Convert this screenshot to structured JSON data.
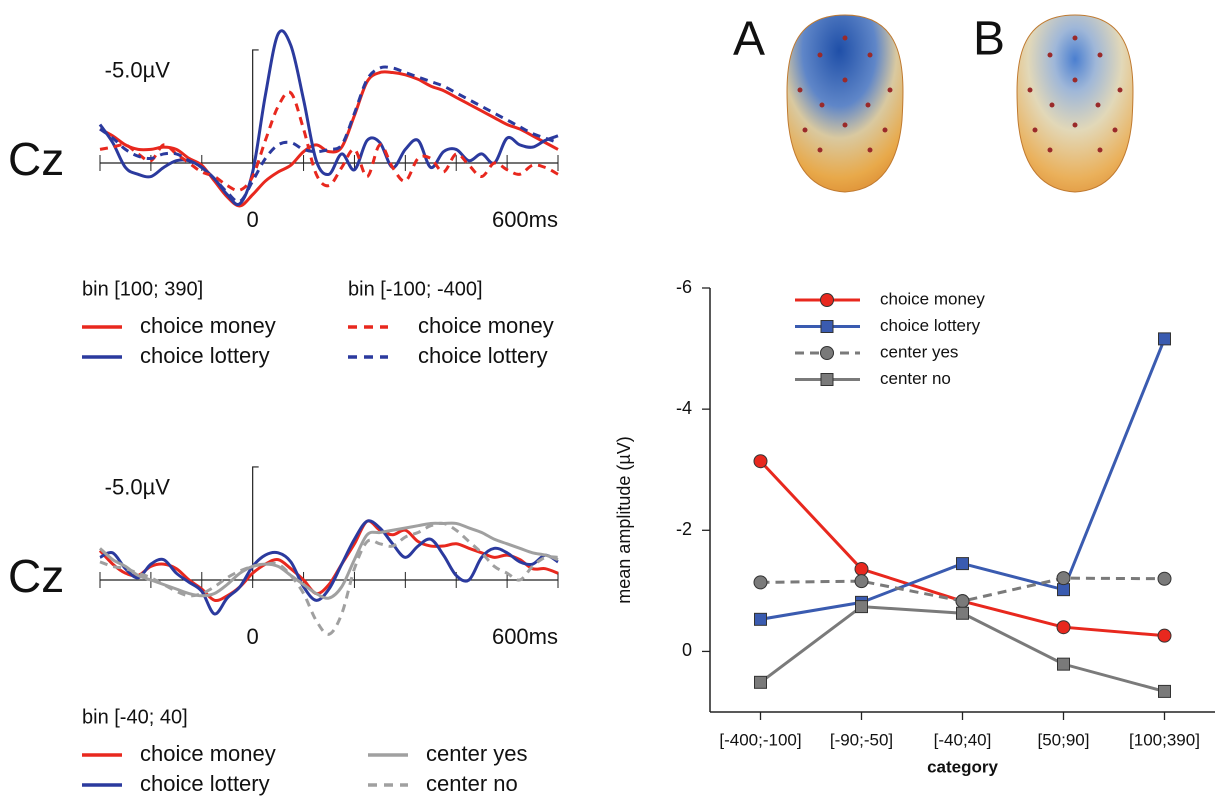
{
  "topomaps": {
    "labels": [
      "A",
      "B"
    ]
  },
  "chart_data": [
    {
      "type": "line",
      "label": "Cz",
      "x": [
        -300,
        -275,
        -250,
        -225,
        -200,
        -175,
        -150,
        -125,
        -100,
        -75,
        -50,
        -25,
        0,
        25,
        50,
        75,
        100,
        125,
        150,
        175,
        200,
        225,
        250,
        275,
        300,
        325,
        350,
        375,
        400,
        425,
        450,
        475,
        500,
        525,
        550,
        575,
        600
      ],
      "xlim": [
        -300,
        600
      ],
      "xticks": [
        0,
        {
          "value": 600,
          "label": "600ms"
        }
      ],
      "minor_xticks": [
        -300,
        -200,
        -100,
        100,
        200,
        300,
        400,
        500
      ],
      "ylim": [
        2.5,
        -6.5
      ],
      "yticks": [
        {
          "value": -5,
          "label": "-5.0µV"
        }
      ],
      "groups": [
        {
          "name": "bin [100; 390]",
          "series": [
            {
              "name": "choice money",
              "color": "#e8281e",
              "dashed": false,
              "values": [
                -1.5,
                -1.2,
                -0.8,
                -0.6,
                -0.6,
                -0.7,
                -0.6,
                -0.2,
                0.1,
                0.8,
                1.5,
                1.9,
                1.4,
                0.8,
                0.4,
                0.1,
                -0.5,
                -0.8,
                -0.5,
                -0.7,
                -2.1,
                -3.6,
                -4.0,
                -4.0,
                -3.9,
                -3.7,
                -3.4,
                -3.2,
                -2.9,
                -2.6,
                -2.3,
                -2.0,
                -1.7,
                -1.5,
                -1.2,
                -0.9,
                -0.6
              ]
            },
            {
              "name": "choice lottery",
              "color": "#2b3a9e",
              "dashed": false,
              "values": [
                -1.7,
                -0.9,
                0.2,
                0.5,
                0.6,
                0.2,
                -0.1,
                -0.1,
                0.2,
                0.7,
                1.4,
                1.8,
                0.4,
                -3.0,
                -5.7,
                -5.2,
                -2.8,
                -0.1,
                0.5,
                -0.4,
                0.3,
                -1.0,
                -0.9,
                0.2,
                -0.6,
                -1.0,
                0.2,
                -0.5,
                -0.6,
                -0.1,
                -0.4,
                0.0,
                -1.1,
                -0.8,
                -0.7,
                -1.0,
                -1.2
              ]
            }
          ]
        },
        {
          "name": "bin [-100; -400]",
          "series": [
            {
              "name": "choice money",
              "color": "#e8281e",
              "dashed": true,
              "values": [
                -0.6,
                -0.7,
                -0.8,
                -0.4,
                -0.1,
                -0.8,
                -0.4,
                0,
                0.4,
                0.6,
                1.0,
                1.2,
                0.6,
                -1.0,
                -2.5,
                -3.1,
                -1.5,
                0.5,
                1.0,
                0.2,
                -0.6,
                0.6,
                -0.8,
                0.2,
                0.8,
                -0.2,
                -0.2,
                0.4,
                -0.4,
                0.1,
                0.6,
                0.0,
                0.3,
                0.5,
                0.1,
                0.2,
                0.5
              ]
            },
            {
              "name": "choice lottery",
              "color": "#2b3a9e",
              "dashed": true,
              "values": [
                -1.5,
                -1.1,
                -0.6,
                -0.3,
                -0.2,
                -0.4,
                -0.4,
                -0.1,
                0.2,
                0.7,
                1.3,
                1.7,
                0.8,
                -0.2,
                -0.8,
                -0.9,
                -0.6,
                -0.5,
                -0.6,
                -0.8,
                -2.2,
                -3.7,
                -4.2,
                -4.2,
                -4.0,
                -3.8,
                -3.6,
                -3.4,
                -3.1,
                -2.8,
                -2.5,
                -2.2,
                -1.9,
                -1.6,
                -1.3,
                -1.1,
                -0.9
              ]
            }
          ]
        }
      ]
    },
    {
      "type": "line",
      "label": "Cz",
      "x": [
        -300,
        -275,
        -250,
        -225,
        -200,
        -175,
        -150,
        -125,
        -100,
        -75,
        -50,
        -25,
        0,
        25,
        50,
        75,
        100,
        125,
        150,
        175,
        200,
        225,
        250,
        275,
        300,
        325,
        350,
        375,
        400,
        425,
        450,
        475,
        500,
        525,
        550,
        575,
        600
      ],
      "xlim": [
        -300,
        600
      ],
      "xticks": [
        0,
        {
          "value": 600,
          "label": "600ms"
        }
      ],
      "minor_xticks": [
        -300,
        -200,
        -100,
        100,
        200,
        300,
        400,
        500
      ],
      "ylim": [
        2.5,
        -6.5
      ],
      "yticks": [
        {
          "value": -5,
          "label": "-5.0µV"
        }
      ],
      "groups": [
        {
          "name": "bin [-40; 40]",
          "series": [
            {
              "name": "choice money",
              "color": "#e8281e",
              "dashed": false,
              "values": [
                -1.3,
                -0.7,
                -0.3,
                -0.2,
                -0.6,
                -0.7,
                -0.5,
                0.0,
                0.4,
                0.9,
                0.7,
                0.3,
                -0.3,
                -0.7,
                -0.9,
                -0.5,
                0.0,
                0.6,
                0.2,
                -0.7,
                -1.6,
                -2.6,
                -2.2,
                -2.0,
                -2.2,
                -1.7,
                -1.5,
                -1.5,
                -1.6,
                -1.4,
                -1.2,
                -1.0,
                -1.1,
                -0.9,
                -0.5,
                -0.5,
                -0.3
              ]
            },
            {
              "name": "choice lottery",
              "color": "#2b3a9e",
              "dashed": false,
              "values": [
                -1.0,
                -1.2,
                -0.5,
                -0.1,
                -0.7,
                -0.9,
                -0.3,
                0.1,
                0.5,
                1.5,
                0.8,
                0.3,
                -0.6,
                -1.1,
                -1.2,
                -0.8,
                0.3,
                0.9,
                0.4,
                -0.7,
                -1.8,
                -2.6,
                -2.3,
                -1.6,
                -1.0,
                -1.5,
                -1.8,
                -1.1,
                -0.2,
                0.0,
                -1.0,
                -1.4,
                -1.2,
                -0.8,
                -0.7,
                -1.1,
                -0.8
              ]
            },
            {
              "name": "center yes",
              "color": "#a0a0a0",
              "dashed": false,
              "values": [
                -1.4,
                -0.9,
                -0.6,
                -0.2,
                0.0,
                0.2,
                0.4,
                0.6,
                0.7,
                0.6,
                0.2,
                -0.3,
                -0.6,
                -0.7,
                -0.6,
                -0.2,
                0.2,
                0.6,
                0.8,
                0.3,
                -0.9,
                -2.0,
                -2.1,
                -2.2,
                -2.3,
                -2.4,
                -2.5,
                -2.5,
                -2.5,
                -2.3,
                -2.1,
                -1.8,
                -1.6,
                -1.4,
                -1.2,
                -1.1,
                -0.9
              ]
            },
            {
              "name": "center no",
              "color": "#a0a0a0",
              "dashed": true,
              "values": [
                -0.8,
                -0.6,
                -0.5,
                -0.3,
                -0.1,
                0.2,
                0.5,
                0.7,
                0.6,
                0.3,
                -0.1,
                -0.4,
                -0.6,
                -0.7,
                -0.7,
                -0.2,
                0.6,
                1.8,
                2.4,
                1.5,
                -0.5,
                -1.7,
                -1.6,
                -1.5,
                -1.9,
                -2.1,
                -2.4,
                -2.5,
                -2.2,
                -1.7,
                -1.2,
                -0.6,
                -0.3,
                0.0,
                -0.6,
                -1.0,
                -1.0
              ]
            }
          ]
        }
      ]
    },
    {
      "type": "line",
      "x_label": "category",
      "y_label": "mean amplitude (µV)",
      "categories": [
        "[-400;-100]",
        "[-90;-50]",
        "[-40;40]",
        "[50;90]",
        "[100;390]"
      ],
      "ylim": [
        1,
        -6
      ],
      "yticks": [
        0,
        -2,
        -4,
        -6
      ],
      "legend": "top",
      "series": [
        {
          "name": "choice money",
          "color": "#e8281e",
          "marker": "circle",
          "dashed": false,
          "values": [
            -3.14,
            -1.36,
            -0.83,
            -0.4,
            -0.26
          ]
        },
        {
          "name": "choice lottery",
          "color": "#3a5bb0",
          "marker": "square",
          "dashed": false,
          "values": [
            -0.53,
            -0.81,
            -1.45,
            -1.02,
            -5.16
          ]
        },
        {
          "name": "center yes",
          "color": "#7a7a7a",
          "marker": "circle",
          "dashed": true,
          "values": [
            -1.14,
            -1.16,
            -0.83,
            -1.21,
            -1.2
          ]
        },
        {
          "name": "center no",
          "color": "#7a7a7a",
          "marker": "square",
          "dashed": false,
          "values": [
            0.51,
            -0.74,
            -0.63,
            0.21,
            0.66
          ]
        }
      ]
    }
  ]
}
